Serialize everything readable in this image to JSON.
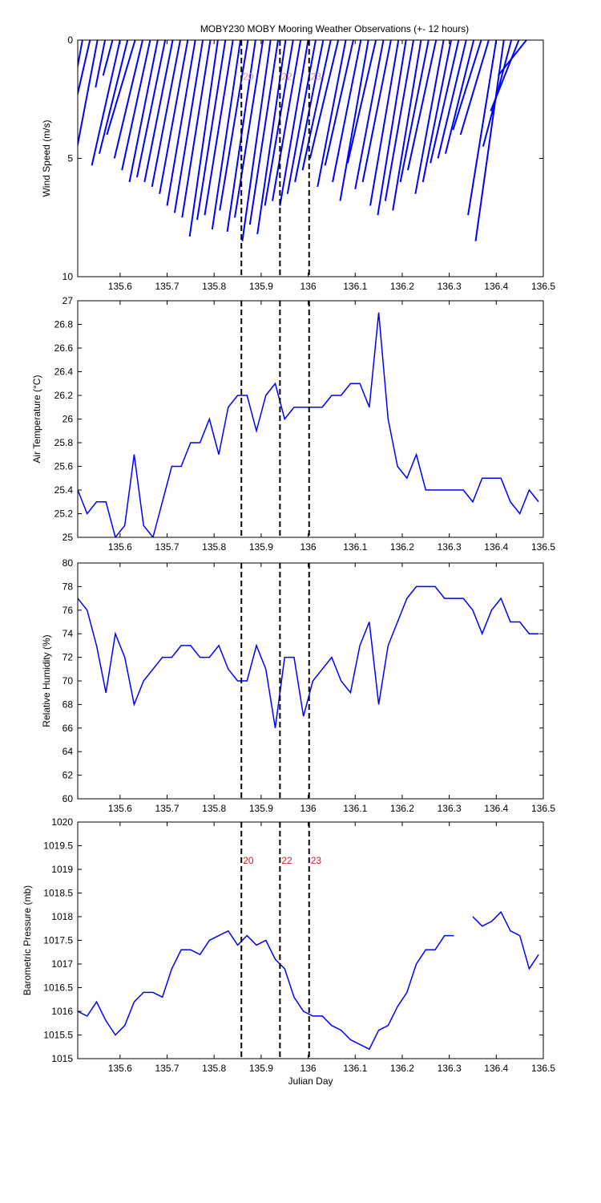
{
  "chart_data": [
    {
      "type": "stick",
      "title": "MOBY230 MOBY Mooring Weather Observations (+- 12 hours)",
      "ylabel": "Wind Speed (m/s)",
      "color": "#0000ff",
      "yreverse": true,
      "x": [
        135.52,
        135.536,
        135.552,
        135.568,
        135.584,
        135.6,
        135.616,
        135.632,
        135.648,
        135.664,
        135.68,
        135.696,
        135.712,
        135.728,
        135.744,
        135.76,
        135.776,
        135.792,
        135.808,
        135.824,
        135.84,
        135.856,
        135.872,
        135.888,
        135.904,
        135.92,
        135.936,
        135.952,
        135.968,
        135.984,
        136.0,
        136.016,
        136.032,
        136.048,
        136.064,
        136.08,
        136.096,
        136.112,
        136.128,
        136.144,
        136.16,
        136.176,
        136.192,
        136.208,
        136.224,
        136.24,
        136.256,
        136.272,
        136.288,
        136.304,
        136.32,
        136.336,
        136.352,
        136.368,
        136.384,
        136.4,
        136.416,
        136.432,
        136.448,
        136.464
      ],
      "x_end": [
        135.46,
        135.476,
        135.492,
        135.548,
        135.564,
        135.54,
        135.556,
        135.572,
        135.588,
        135.604,
        135.62,
        135.636,
        135.652,
        135.668,
        135.684,
        135.7,
        135.716,
        135.732,
        135.748,
        135.764,
        135.78,
        135.796,
        135.812,
        135.828,
        135.844,
        135.86,
        135.876,
        135.892,
        135.908,
        135.924,
        135.94,
        135.956,
        135.972,
        135.988,
        136.004,
        136.02,
        136.036,
        136.052,
        136.068,
        136.084,
        136.1,
        136.116,
        136.132,
        136.148,
        136.164,
        136.18,
        136.196,
        136.212,
        136.228,
        136.244,
        136.26,
        136.276,
        136.292,
        136.308,
        136.324,
        136.34,
        136.356,
        136.372,
        136.388,
        136.404
      ],
      "values": [
        6.5,
        5.2,
        6.3,
        2.0,
        1.5,
        5.3,
        4.8,
        4.0,
        5.0,
        5.5,
        6.0,
        5.8,
        6.0,
        6.2,
        6.5,
        7.0,
        7.3,
        7.5,
        8.3,
        7.6,
        7.4,
        8.0,
        7.2,
        8.1,
        7.5,
        8.5,
        7.8,
        8.2,
        7.0,
        6.8,
        7.0,
        6.5,
        6.0,
        5.5,
        5.0,
        6.2,
        5.3,
        6.0,
        6.8,
        5.2,
        6.3,
        6.0,
        7.0,
        7.4,
        6.8,
        7.2,
        6.0,
        5.5,
        6.5,
        6.0,
        5.2,
        5.0,
        4.8,
        3.8,
        4.0,
        7.4,
        8.5,
        4.5,
        3.0,
        1.5
      ],
      "xlim": [
        135.51,
        136.5
      ],
      "xticks": [
        135.6,
        135.7,
        135.8,
        135.9,
        136,
        136.1,
        136.2,
        136.3,
        136.4,
        136.5
      ],
      "ylim": [
        0,
        10
      ],
      "yticks": [
        0,
        5,
        10
      ],
      "markers": [
        {
          "x": 135.858,
          "label": "20"
        },
        {
          "x": 135.94,
          "label": "22"
        },
        {
          "x": 136.002,
          "label": "23"
        }
      ],
      "marker_label_y": 1.5,
      "marker_label_color": "#e89090"
    },
    {
      "type": "line",
      "ylabel": "Air Temperature (°C)",
      "x": [
        135.51,
        135.53,
        135.55,
        135.57,
        135.59,
        135.61,
        135.63,
        135.65,
        135.67,
        135.69,
        135.71,
        135.73,
        135.75,
        135.77,
        135.79,
        135.81,
        135.83,
        135.85,
        135.87,
        135.89,
        135.91,
        135.93,
        135.95,
        135.97,
        135.99,
        136.01,
        136.03,
        136.05,
        136.07,
        136.09,
        136.11,
        136.13,
        136.15,
        136.17,
        136.19,
        136.21,
        136.23,
        136.25,
        136.27,
        136.29,
        136.31,
        136.33,
        136.35,
        136.37,
        136.39,
        136.41,
        136.43,
        136.45,
        136.47,
        136.49
      ],
      "series": [
        {
          "color": "#0000ff",
          "values": [
            25.4,
            25.2,
            25.3,
            25.3,
            25.0,
            25.1,
            25.7,
            25.1,
            25.0,
            25.3,
            25.6,
            25.6,
            25.8,
            25.8,
            26.0,
            25.7,
            26.1,
            26.2,
            26.2,
            25.9,
            26.2,
            26.3,
            26.0,
            26.1,
            26.1,
            26.1,
            26.1,
            26.2,
            26.2,
            26.3,
            26.3,
            26.1,
            26.9,
            26.0,
            25.6,
            25.5,
            25.7,
            25.4,
            25.4,
            25.4,
            25.4,
            25.4,
            25.3,
            25.5,
            25.5,
            25.5,
            25.3,
            25.2,
            25.4,
            25.3
          ]
        }
      ],
      "xlim": [
        135.51,
        136.5
      ],
      "xticks": [
        135.6,
        135.7,
        135.8,
        135.9,
        136,
        136.1,
        136.2,
        136.3,
        136.4,
        136.5
      ],
      "ylim": [
        25,
        27
      ],
      "yticks": [
        25,
        25.2,
        25.4,
        25.6,
        25.8,
        26,
        26.2,
        26.4,
        26.6,
        26.8,
        27
      ],
      "markers": [
        {
          "x": 135.858
        },
        {
          "x": 135.94
        },
        {
          "x": 136.002
        }
      ]
    },
    {
      "type": "line",
      "ylabel": "Relative Humidity (%)",
      "x": [
        135.51,
        135.53,
        135.55,
        135.57,
        135.59,
        135.61,
        135.63,
        135.65,
        135.67,
        135.69,
        135.71,
        135.73,
        135.75,
        135.77,
        135.79,
        135.81,
        135.83,
        135.85,
        135.87,
        135.89,
        135.91,
        135.93,
        135.95,
        135.97,
        135.99,
        136.01,
        136.03,
        136.05,
        136.07,
        136.09,
        136.11,
        136.13,
        136.15,
        136.17,
        136.19,
        136.21,
        136.23,
        136.25,
        136.27,
        136.29,
        136.31,
        136.33,
        136.35,
        136.37,
        136.39,
        136.41,
        136.43,
        136.45,
        136.47,
        136.49
      ],
      "series": [
        {
          "color": "#0000ff",
          "values": [
            77,
            76,
            73,
            69,
            74,
            72,
            68,
            70,
            71,
            72,
            72,
            73,
            73,
            72,
            72,
            73,
            71,
            70,
            70,
            73,
            71,
            66,
            72,
            72,
            67,
            70,
            71,
            72,
            70,
            69,
            73,
            75,
            68,
            73,
            75,
            77,
            78,
            78,
            78,
            77,
            77,
            77,
            76,
            74,
            76,
            77,
            75,
            75,
            74,
            74
          ]
        }
      ],
      "xlim": [
        135.51,
        136.5
      ],
      "xticks": [
        135.6,
        135.7,
        135.8,
        135.9,
        136,
        136.1,
        136.2,
        136.3,
        136.4,
        136.5
      ],
      "ylim": [
        60,
        80
      ],
      "yticks": [
        60,
        62,
        64,
        66,
        68,
        70,
        72,
        74,
        76,
        78,
        80
      ],
      "markers": [
        {
          "x": 135.858
        },
        {
          "x": 135.94
        },
        {
          "x": 136.002
        }
      ]
    },
    {
      "type": "line",
      "ylabel": "Barometric Pressure (mb)",
      "xlabel": "Julian Day",
      "x": [
        135.51,
        135.53,
        135.55,
        135.57,
        135.59,
        135.61,
        135.63,
        135.65,
        135.67,
        135.69,
        135.71,
        135.73,
        135.75,
        135.77,
        135.79,
        135.81,
        135.83,
        135.85,
        135.87,
        135.89,
        135.91,
        135.93,
        135.95,
        135.97,
        135.99,
        136.01,
        136.03,
        136.05,
        136.07,
        136.09,
        136.11,
        136.13,
        136.15,
        136.17,
        136.19,
        136.21,
        136.23,
        136.25,
        136.27,
        136.29,
        136.31,
        136.33,
        136.35,
        136.37,
        136.39,
        136.41,
        136.43,
        136.45,
        136.47,
        136.49
      ],
      "series": [
        {
          "color": "#0000ff",
          "values": [
            1016.0,
            1015.9,
            1016.2,
            1015.8,
            1015.5,
            1015.7,
            1016.2,
            1016.4,
            1016.4,
            1016.3,
            1016.9,
            1017.3,
            1017.3,
            1017.2,
            1017.5,
            1017.6,
            1017.7,
            1017.4,
            1017.6,
            1017.4,
            1017.5,
            1017.1,
            1016.9,
            1016.3,
            1016.0,
            1015.9,
            1015.9,
            1015.7,
            1015.6,
            1015.4,
            1015.3,
            1015.2,
            1015.6,
            1015.7,
            1016.1,
            1016.4,
            1017.0,
            1017.3,
            1017.3,
            1017.6,
            1017.6,
            null,
            1018.0,
            1017.8,
            1017.9,
            1018.1,
            1017.7,
            1017.6,
            1016.9,
            1017.2
          ]
        }
      ],
      "xlim": [
        135.51,
        136.5
      ],
      "xticks": [
        135.6,
        135.7,
        135.8,
        135.9,
        136,
        136.1,
        136.2,
        136.3,
        136.4,
        136.5
      ],
      "ylim": [
        1015,
        1020
      ],
      "yticks": [
        1015,
        1015.5,
        1016,
        1016.5,
        1017,
        1017.5,
        1018,
        1018.5,
        1019,
        1019.5,
        1020
      ],
      "markers": [
        {
          "x": 135.858,
          "label": "20"
        },
        {
          "x": 135.94,
          "label": "22"
        },
        {
          "x": 136.002,
          "label": "23"
        }
      ],
      "marker_label_y": 1019.2,
      "marker_label_color": "#cc2222"
    }
  ]
}
